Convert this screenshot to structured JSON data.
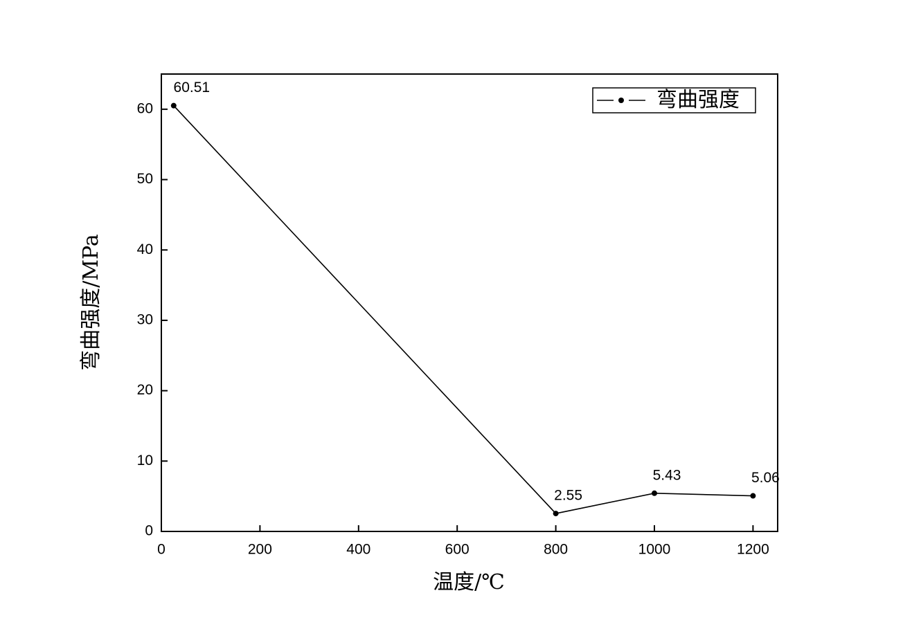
{
  "chart_data": {
    "type": "line",
    "x_label": "温度/℃",
    "y_label": "弯曲强度/MPa",
    "x": [
      25,
      800,
      1000,
      1200
    ],
    "series": [
      {
        "name": "弯曲强度",
        "color": "#000000",
        "values": [
          60.51,
          2.55,
          5.43,
          5.06
        ]
      }
    ],
    "xlim": [
      0,
      1250
    ],
    "xticks": [
      0,
      200,
      400,
      600,
      800,
      1000,
      1200
    ],
    "ylim": [
      0,
      65
    ],
    "yticks": [
      0,
      10,
      20,
      30,
      40,
      50,
      60
    ],
    "legend": "upper right",
    "grid": false
  }
}
